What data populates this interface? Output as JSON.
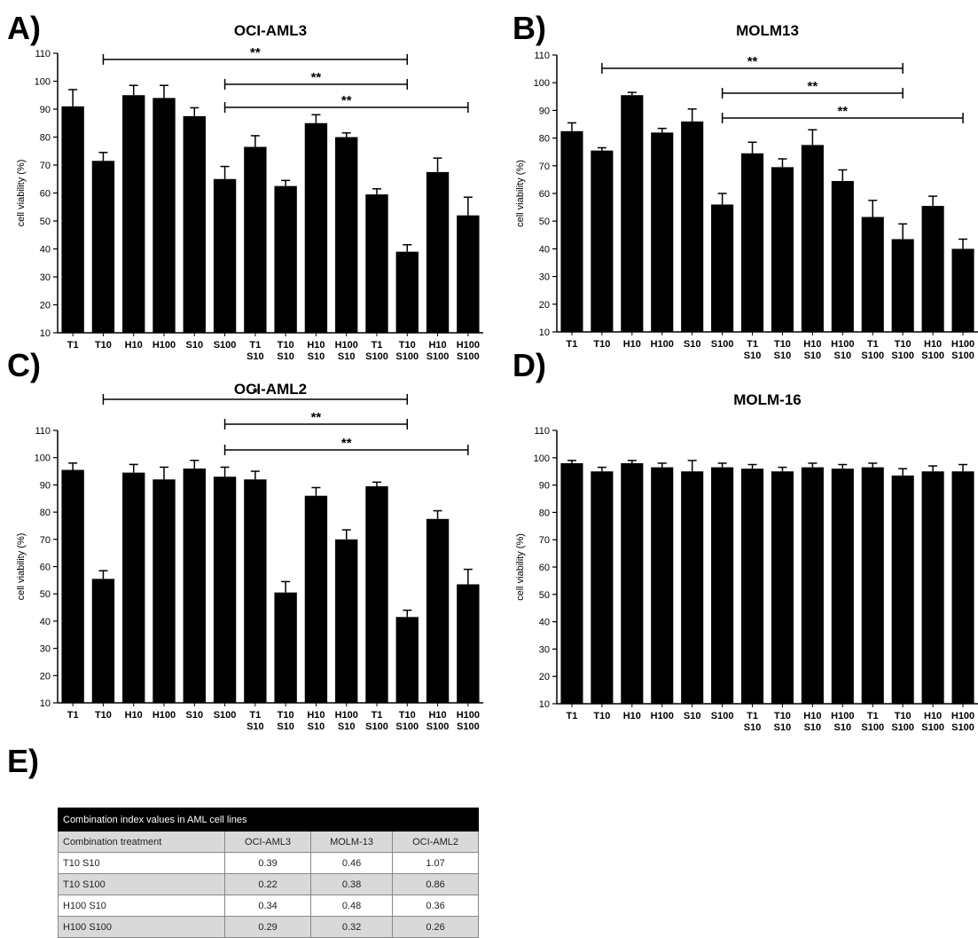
{
  "panel_letters": [
    "A)",
    "B)",
    "C)",
    "D)",
    "E)"
  ],
  "chart_data": [
    {
      "type": "bar",
      "title": "OCI-AML3",
      "ylabel": "cell viability (%)",
      "ylim": [
        10,
        110
      ],
      "yticks": [
        "10",
        "20",
        "30",
        "40",
        "50",
        "60",
        "70",
        "80",
        "90",
        "100",
        "110"
      ],
      "categories": [
        [
          "T1"
        ],
        [
          "T10"
        ],
        [
          "H10"
        ],
        [
          "H100"
        ],
        [
          "S10"
        ],
        [
          "S100"
        ],
        [
          "T1",
          "S10"
        ],
        [
          "T10",
          "S10"
        ],
        [
          "H10",
          "S10"
        ],
        [
          "H100",
          "S10"
        ],
        [
          "T1",
          "S100"
        ],
        [
          "T10",
          "S100"
        ],
        [
          "H10",
          "S100"
        ],
        [
          "H100",
          "S100"
        ]
      ],
      "values": [
        91,
        71.5,
        95,
        94,
        87.5,
        65,
        76.5,
        62.5,
        85,
        80,
        59.5,
        39,
        67.5,
        52
      ],
      "errors": [
        6,
        3,
        3.5,
        4.5,
        3,
        4.5,
        4,
        2,
        3,
        1.5,
        2,
        2.5,
        5,
        6.5
      ],
      "significance": [
        {
          "from": 1,
          "to": 11,
          "label": "**"
        },
        {
          "from": 5,
          "to": 11,
          "label": "**"
        },
        {
          "from": 5,
          "to": 13,
          "label": "**"
        }
      ]
    },
    {
      "type": "bar",
      "title": "MOLM13",
      "ylabel": "cell viability (%)",
      "ylim": [
        10,
        110
      ],
      "yticks": [
        "10",
        "20",
        "30",
        "40",
        "50",
        "60",
        "70",
        "80",
        "90",
        "100",
        "110"
      ],
      "categories": [
        [
          "T1"
        ],
        [
          "T10"
        ],
        [
          "H10"
        ],
        [
          "H100"
        ],
        [
          "S10"
        ],
        [
          "S100"
        ],
        [
          "T1",
          "S10"
        ],
        [
          "T10",
          "S10"
        ],
        [
          "H10",
          "S10"
        ],
        [
          "H100",
          "S10"
        ],
        [
          "T1",
          "S100"
        ],
        [
          "T10",
          "S100"
        ],
        [
          "H10",
          "S100"
        ],
        [
          "H100",
          "S100"
        ]
      ],
      "values": [
        82.5,
        75.5,
        95.5,
        82,
        86,
        56,
        74.5,
        69.5,
        77.5,
        64.5,
        51.5,
        43.5,
        55.5,
        40
      ],
      "errors": [
        3,
        1,
        1,
        1.5,
        4.5,
        4,
        4,
        3,
        5.5,
        4,
        6,
        5.5,
        3.5,
        3.5
      ],
      "significance": [
        {
          "from": 1,
          "to": 11,
          "label": "**"
        },
        {
          "from": 5,
          "to": 11,
          "label": "**"
        },
        {
          "from": 5,
          "to": 13,
          "label": "**"
        }
      ]
    },
    {
      "type": "bar",
      "title": "OCI-AML2",
      "ylabel": "cell viability (%)",
      "ylim": [
        10,
        110
      ],
      "yticks": [
        "10",
        "20",
        "30",
        "40",
        "50",
        "60",
        "70",
        "80",
        "90",
        "100",
        "110"
      ],
      "categories": [
        [
          "T1"
        ],
        [
          "T10"
        ],
        [
          "H10"
        ],
        [
          "H100"
        ],
        [
          "S10"
        ],
        [
          "S100"
        ],
        [
          "T1",
          "S10"
        ],
        [
          "T10",
          "S10"
        ],
        [
          "H10",
          "S10"
        ],
        [
          "H100",
          "S10"
        ],
        [
          "T1",
          "S100"
        ],
        [
          "T10",
          "S100"
        ],
        [
          "H10",
          "S100"
        ],
        [
          "H100",
          "S100"
        ]
      ],
      "values": [
        95.5,
        55.5,
        94.5,
        92,
        96,
        93,
        92,
        50.5,
        86,
        70,
        89.5,
        41.5,
        77.5,
        53.5
      ],
      "errors": [
        2.5,
        3,
        3,
        4.5,
        3,
        3.5,
        3,
        4,
        3,
        3.5,
        1.5,
        2.5,
        3,
        5.5
      ],
      "significance": [
        {
          "from": 1,
          "to": 11,
          "label": "*"
        },
        {
          "from": 5,
          "to": 11,
          "label": "**"
        },
        {
          "from": 5,
          "to": 13,
          "label": "**"
        }
      ]
    },
    {
      "type": "bar",
      "title": "MOLM-16",
      "ylabel": "cell viability (%)",
      "ylim": [
        10,
        110
      ],
      "yticks": [
        "10",
        "20",
        "30",
        "40",
        "50",
        "60",
        "70",
        "80",
        "90",
        "100",
        "110"
      ],
      "categories": [
        [
          "T1"
        ],
        [
          "T10"
        ],
        [
          "H10"
        ],
        [
          "H100"
        ],
        [
          "S10"
        ],
        [
          "S100"
        ],
        [
          "T1",
          "S10"
        ],
        [
          "T10",
          "S10"
        ],
        [
          "H10",
          "S10"
        ],
        [
          "H100",
          "S10"
        ],
        [
          "T1",
          "S100"
        ],
        [
          "T10",
          "S100"
        ],
        [
          "H10",
          "S100"
        ],
        [
          "H100",
          "S100"
        ]
      ],
      "values": [
        98,
        95,
        98,
        96.5,
        95,
        96.5,
        96,
        95,
        96.5,
        96,
        96.5,
        93.5,
        95,
        95
      ],
      "errors": [
        1,
        1.5,
        1,
        1.5,
        4,
        1.5,
        1.5,
        1.5,
        1.5,
        1.5,
        1.5,
        2.5,
        2,
        2.5
      ],
      "significance": []
    }
  ],
  "table": {
    "caption": "Combination index values in AML cell lines",
    "headers": [
      "Combination treatment",
      "OCI-AML3",
      "MOLM-13",
      "OCI-AML2"
    ],
    "rows": [
      [
        "T10   S10",
        "0.39",
        "0.46",
        "1.07"
      ],
      [
        "T10   S100",
        "0.22",
        "0.38",
        "0.86"
      ],
      [
        "H100 S10",
        "0.34",
        "0.48",
        "0.36"
      ],
      [
        "H100 S100",
        "0.29",
        "0.32",
        "0.26"
      ]
    ]
  },
  "colors": {
    "bar": "#000000",
    "table_header": "#000000",
    "row_shade": "#d9d9d9"
  }
}
